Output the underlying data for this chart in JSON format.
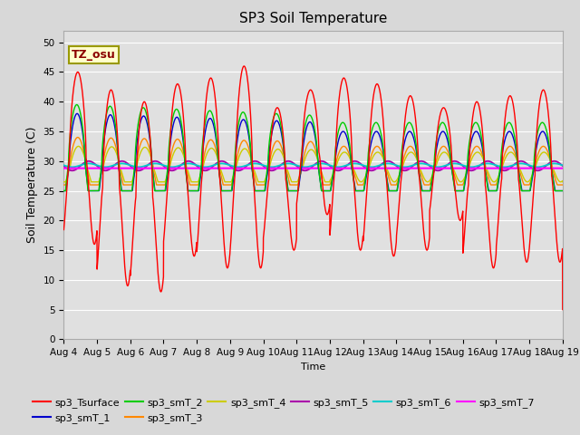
{
  "title": "SP3 Soil Temperature",
  "ylabel": "Soil Temperature (C)",
  "xlabel": "Time",
  "ylim": [
    0,
    52
  ],
  "yticks": [
    0,
    5,
    10,
    15,
    20,
    25,
    30,
    35,
    40,
    45,
    50
  ],
  "start_day": 4,
  "end_day": 19,
  "n_days": 15,
  "tz_label": "TZ_osu",
  "fig_bg_color": "#d8d8d8",
  "plot_bg_color": "#e0e0e0",
  "series_colors": {
    "sp3_Tsurface": "#ff0000",
    "sp3_smT_1": "#0000cc",
    "sp3_smT_2": "#00cc00",
    "sp3_smT_3": "#ff8800",
    "sp3_smT_4": "#cccc00",
    "sp3_smT_5": "#aa00aa",
    "sp3_smT_6": "#00cccc",
    "sp3_smT_7": "#ff00ff"
  }
}
